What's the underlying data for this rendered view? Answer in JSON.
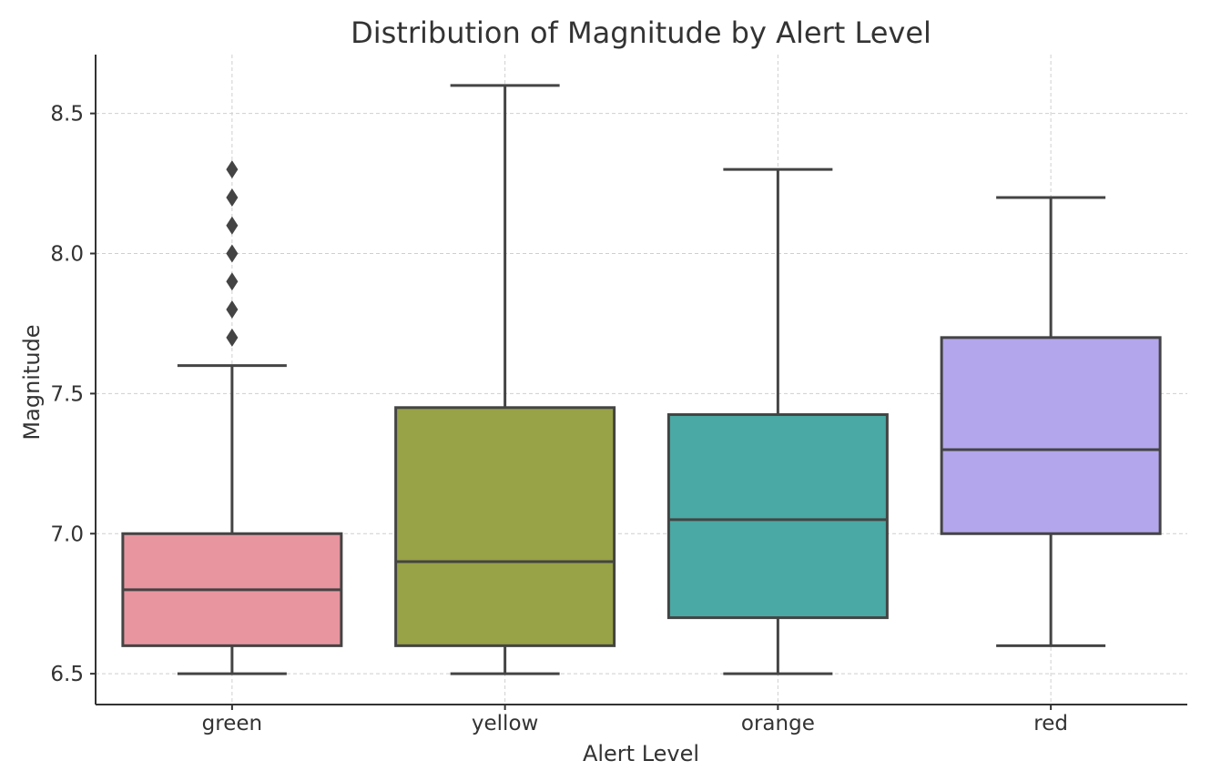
{
  "chart_data": {
    "type": "boxplot",
    "title": "Distribution of Magnitude by Alert Level",
    "xlabel": "Alert Level",
    "ylabel": "Magnitude",
    "categories": [
      "green",
      "yellow",
      "orange",
      "red"
    ],
    "ylim": [
      6.39,
      8.71
    ],
    "yticks": [
      6.5,
      7.0,
      7.5,
      8.0,
      8.5
    ],
    "ytick_labels": [
      "6.5",
      "7.0",
      "7.5",
      "8.0",
      "8.5"
    ],
    "grid": true,
    "boxes": [
      {
        "category": "green",
        "whisker_low": 6.5,
        "q1": 6.6,
        "median": 6.8,
        "q3": 7.0,
        "whisker_high": 7.6,
        "outliers": [
          7.7,
          7.8,
          7.9,
          8.0,
          8.1,
          8.2,
          8.3
        ]
      },
      {
        "category": "yellow",
        "whisker_low": 6.5,
        "q1": 6.6,
        "median": 6.9,
        "q3": 7.45,
        "whisker_high": 8.6,
        "outliers": []
      },
      {
        "category": "orange",
        "whisker_low": 6.5,
        "q1": 6.7,
        "median": 7.05,
        "q3": 7.425,
        "whisker_high": 8.3,
        "outliers": []
      },
      {
        "category": "red",
        "whisker_low": 6.6,
        "q1": 7.0,
        "median": 7.3,
        "q3": 7.7,
        "whisker_high": 8.2,
        "outliers": []
      }
    ],
    "colors": {
      "green": "#e8959f",
      "yellow": "#98a246",
      "orange": "#4aa9a4",
      "red": "#b4a6ec",
      "line": "#444444",
      "grid": "#cfcfcf",
      "axis": "#333333"
    }
  }
}
